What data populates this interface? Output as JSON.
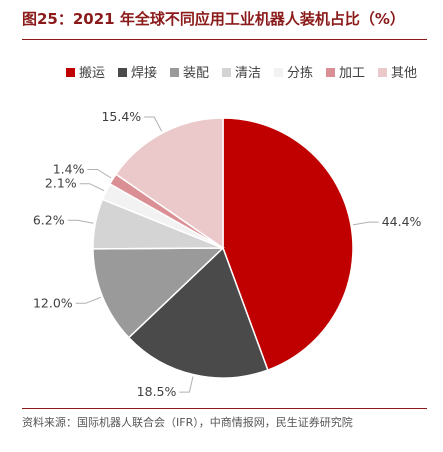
{
  "title": "图25：2021 年全球不同应用工业机器人装机占比（%）",
  "source": "资料来源：国际机器人联合会（IFR），中商情报网，民生证券研究院",
  "chart_data": {
    "type": "pie",
    "title": "图25：2021 年全球不同应用工业机器人装机占比（%）",
    "legend_position": "top",
    "slices": [
      {
        "label": "搬运",
        "value": 44.4,
        "value_label": "44.4%",
        "color": "#c00000"
      },
      {
        "label": "焊接",
        "value": 18.5,
        "value_label": "18.5%",
        "color": "#4a4a4a"
      },
      {
        "label": "装配",
        "value": 12.0,
        "value_label": "12.0%",
        "color": "#9a9a9a"
      },
      {
        "label": "清洁",
        "value": 6.2,
        "value_label": "6.2%",
        "color": "#d4d4d4"
      },
      {
        "label": "分拣",
        "value": 2.1,
        "value_label": "2.1%",
        "color": "#f2f2f2"
      },
      {
        "label": "加工",
        "value": 1.4,
        "value_label": "1.4%",
        "color": "#d98f93"
      },
      {
        "label": "其他",
        "value": 15.4,
        "value_label": "15.4%",
        "color": "#ebc9cb"
      }
    ]
  }
}
